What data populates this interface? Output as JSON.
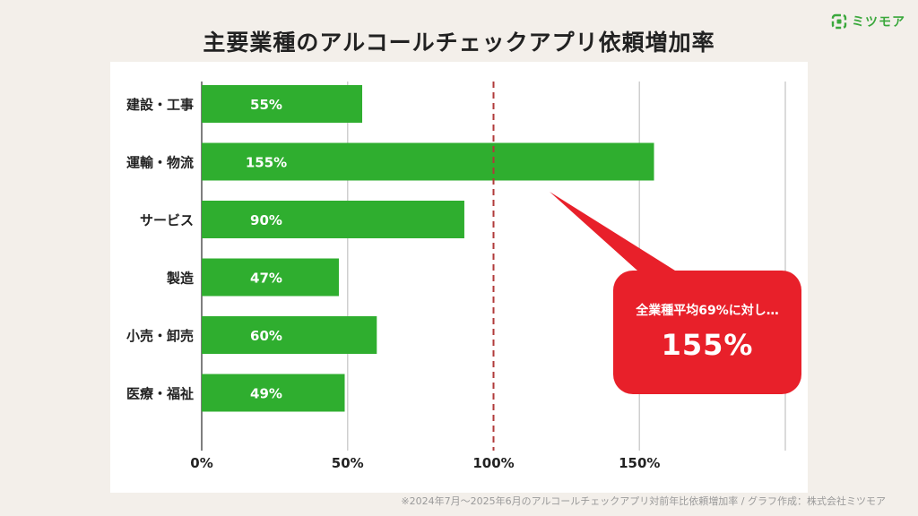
{
  "title": "主要業種のアルコールチェックアプリ依頼増加率",
  "logo": {
    "text": "ミツモア",
    "icon": "mitsumore-logo-icon",
    "color": "#3aa83c"
  },
  "footnote": "※2024年7月〜2025年6月のアルコールチェックアプリ対前年比依頼増加率 / グラフ作成：株式会社ミツモア",
  "callout": {
    "subtitle": "全業種平均69%に対し…",
    "value": "155%",
    "color": "#e8202a"
  },
  "colors": {
    "bar": "#2fae2f",
    "reference_line": "#b03a3a",
    "grid": "#cfcfcf",
    "axis": "#555555"
  },
  "chart_data": {
    "type": "bar",
    "orientation": "horizontal",
    "categories": [
      "建設・工事",
      "運輸・物流",
      "サービス",
      "製造",
      "小売・卸売",
      "医療・福祉"
    ],
    "values": [
      55,
      155,
      90,
      47,
      60,
      49
    ],
    "value_labels": [
      "55%",
      "155%",
      "90%",
      "47%",
      "60%",
      "49%"
    ],
    "xlim": [
      0,
      200
    ],
    "xticks": [
      0,
      50,
      100,
      150
    ],
    "xtick_labels": [
      "0%",
      "50%",
      "100%",
      "150%"
    ],
    "reference_line": 100,
    "grid": true,
    "xlabel": "",
    "ylabel": ""
  }
}
